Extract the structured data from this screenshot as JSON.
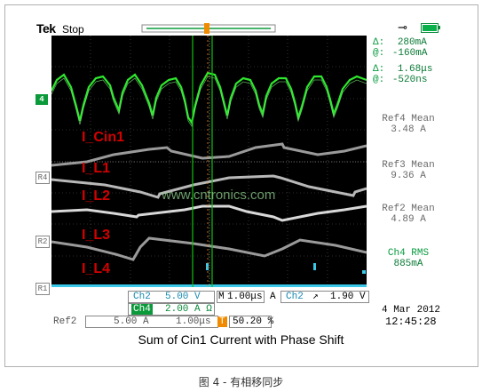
{
  "scope": {
    "brand": "Tek",
    "acq_state": "Stop",
    "trigger_marker": "T",
    "date": "4 Mar  2012",
    "time": "12:45:28"
  },
  "waveform_labels": {
    "cin1": "I_Cin1",
    "l1": "I_L1",
    "l2": "I_L2",
    "l3": "I_L3",
    "l4": "I_L4"
  },
  "channel_markers": {
    "ch4": "4",
    "r4": "R4",
    "r2": "R2",
    "r1": "R1"
  },
  "watermark": "www.cntronics.com",
  "cursor_readout": {
    "delta_i_label": "Δ:",
    "delta_i": "280mA",
    "at_i_label": "@:",
    "at_i": "-160mA",
    "delta_t_label": "Δ:",
    "delta_t": "1.68μs",
    "at_t_label": "@:",
    "at_t": "-520ns"
  },
  "measurements": [
    {
      "label": "Ref4 Mean",
      "value": "3.48 A"
    },
    {
      "label": "Ref3 Mean",
      "value": "9.36 A"
    },
    {
      "label": "Ref2 Mean",
      "value": "4.89 A"
    },
    {
      "label": "Ch4 RMS",
      "value": "885mA"
    }
  ],
  "status_bar": {
    "ch2_label": "Ch2",
    "ch2_scale": "5.00 V",
    "ch4_label": "Ch4",
    "ch4_scale": "2.00 A Ω",
    "timebase_label": "M",
    "timebase": "1.00μs",
    "trig_mode": "A",
    "trig_src": "Ch2",
    "trig_slope": "↗",
    "trig_level": "1.90 V",
    "ref2_label": "Ref2",
    "ref2_scale": "5.00 A",
    "ref2_time": "1.00μs",
    "trig_pos_marker": "T",
    "trig_pos": "50.20 %"
  },
  "caption": "Sum of Cin1 Current with Phase Shift",
  "figure_caption": "图 4 - 有相移同步",
  "colors": {
    "ch4_trace": "#2ee82e",
    "ref_trace_light": "#8a8a8a",
    "ref_trace_dark": "#c8c8c8",
    "ch2_trace": "#39c8e8",
    "label_red": "#d40000",
    "cursor_green": "#10c010",
    "trigger_orange": "#f08a00"
  }
}
